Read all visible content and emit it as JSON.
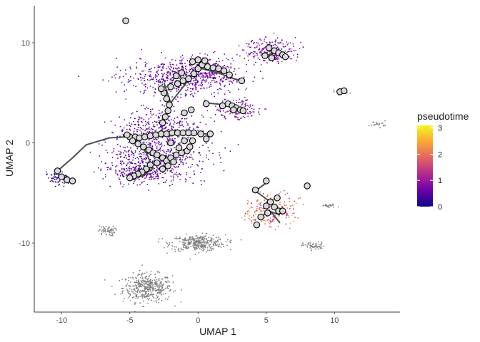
{
  "chart_data": {
    "type": "scatter",
    "title": "",
    "xlabel": "UMAP 1",
    "ylabel": "UMAP 2",
    "xlim": [
      -12,
      14.8
    ],
    "ylim": [
      -16.9,
      13.7
    ],
    "xticks": [
      -10,
      -5,
      0,
      5,
      10
    ],
    "yticks": [
      -10,
      0,
      10
    ],
    "grid": false,
    "legend": {
      "title": "pseudotime",
      "placement": "right",
      "range": [
        0,
        3.1
      ],
      "ticks": [
        0,
        1,
        2,
        3
      ],
      "colors": [
        "#0d0887",
        "#6a00a8",
        "#b12a90",
        "#e16462",
        "#fca636",
        "#f0f921"
      ]
    },
    "colors": {
      "unassigned": "#7f7f7f",
      "trajectory": "#4d4d4d"
    },
    "clusters": [
      {
        "name": "top-left",
        "cx": -1.6,
        "cy": 6.5,
        "sx": 1.9,
        "sy": 0.9,
        "n": 520,
        "t": [
          0.2,
          0.9
        ]
      },
      {
        "name": "upper-mid",
        "cx": 0.8,
        "cy": 7.2,
        "sx": 1.3,
        "sy": 0.7,
        "n": 260,
        "t": [
          0.3,
          1.0
        ]
      },
      {
        "name": "mid-right",
        "cx": 2.8,
        "cy": 3.4,
        "sx": 0.8,
        "sy": 0.5,
        "n": 140,
        "t": [
          0.4,
          1.2
        ]
      },
      {
        "name": "center-band",
        "cx": -2.8,
        "cy": 1.5,
        "sx": 1.6,
        "sy": 0.9,
        "n": 330,
        "t": [
          0.2,
          0.8
        ]
      },
      {
        "name": "center-low",
        "cx": -3.0,
        "cy": -1.5,
        "sx": 1.8,
        "sy": 1.1,
        "n": 520,
        "t": [
          0.1,
          0.8
        ]
      },
      {
        "name": "lower-left",
        "cx": -4.2,
        "cy": -3.0,
        "sx": 1.0,
        "sy": 0.5,
        "n": 220,
        "t": [
          0.2,
          0.9
        ]
      },
      {
        "name": "far-left",
        "cx": -10.2,
        "cy": -3.6,
        "sx": 0.4,
        "sy": 0.35,
        "n": 70,
        "t": [
          0.0,
          0.5
        ]
      },
      {
        "name": "top-right",
        "cx": 5.3,
        "cy": 9.2,
        "sx": 0.9,
        "sy": 0.6,
        "n": 240,
        "t": [
          0.3,
          1.2
        ]
      },
      {
        "name": "right-branch",
        "cx": 5.3,
        "cy": -6.8,
        "sx": 0.9,
        "sy": 0.8,
        "n": 230,
        "t": [
          1.0,
          2.7
        ]
      }
    ],
    "gray_clusters": [
      {
        "name": "ring-bottom",
        "cx": -3.7,
        "cy": -14.5,
        "sx": 0.9,
        "sy": 0.7,
        "n": 420
      },
      {
        "name": "blob-bottom",
        "cx": 0.0,
        "cy": -10.0,
        "sx": 1.0,
        "sy": 0.4,
        "n": 340
      },
      {
        "name": "blob-left",
        "cx": -6.7,
        "cy": -8.8,
        "sx": 0.3,
        "sy": 0.25,
        "n": 60
      },
      {
        "name": "blob-right",
        "cx": 8.5,
        "cy": -10.3,
        "sx": 0.4,
        "sy": 0.2,
        "n": 60
      },
      {
        "name": "blob-right2",
        "cx": 9.6,
        "cy": -6.3,
        "sx": 0.3,
        "sy": 0.1,
        "n": 24
      },
      {
        "name": "blob-far",
        "cx": 13.2,
        "cy": 1.9,
        "sx": 0.3,
        "sy": 0.15,
        "n": 22
      },
      {
        "name": "blob-mid",
        "cx": 10.5,
        "cy": 5.1,
        "sx": 0.3,
        "sy": 0.15,
        "n": 22
      }
    ],
    "trajectory": [
      [
        [
          -10.3,
          -2.8
        ],
        [
          -9.2,
          -1.5
        ],
        [
          -8.2,
          -0.2
        ],
        [
          -6.5,
          0.5
        ],
        [
          -5.3,
          0.6
        ]
      ],
      [
        [
          -5.3,
          0.6
        ],
        [
          -4.0,
          0.7
        ],
        [
          -2.5,
          0.9
        ],
        [
          -1.0,
          0.9
        ],
        [
          1.0,
          0.9
        ]
      ],
      [
        [
          -4.6,
          0.4
        ],
        [
          -3.8,
          -1.0
        ],
        [
          -3.3,
          -2.5
        ],
        [
          -4.0,
          -3.3
        ],
        [
          -5.2,
          -3.6
        ]
      ],
      [
        [
          -2.6,
          2.0
        ],
        [
          -2.0,
          4.0
        ],
        [
          -2.3,
          5.2
        ],
        [
          -2.5,
          6.0
        ]
      ],
      [
        [
          -2.0,
          4.0
        ],
        [
          0.0,
          7.5
        ],
        [
          1.5,
          7.0
        ],
        [
          2.4,
          6.5
        ],
        [
          3.2,
          6.2
        ]
      ],
      [
        [
          0.5,
          4.0
        ],
        [
          2.0,
          3.8
        ],
        [
          3.3,
          3.2
        ]
      ],
      [
        [
          4.8,
          8.5
        ],
        [
          5.7,
          9.2
        ],
        [
          6.3,
          8.9
        ]
      ],
      [
        [
          4.2,
          -4.8
        ],
        [
          5.2,
          -5.8
        ],
        [
          6.0,
          -6.7
        ]
      ],
      [
        [
          4.5,
          -7.5
        ],
        [
          5.2,
          -6.8
        ],
        [
          6.0,
          -7.2
        ]
      ],
      [
        [
          5.0,
          -4.0
        ],
        [
          4.2,
          -4.8
        ]
      ],
      [
        [
          5.3,
          -6.8
        ],
        [
          6.0,
          -8.0
        ]
      ]
    ],
    "nodes": [
      [
        -5.3,
        12.2
      ],
      [
        -10.3,
        -2.8
      ],
      [
        -10.0,
        -3.4
      ],
      [
        -9.6,
        -3.7
      ],
      [
        -9.2,
        -3.8
      ],
      [
        -5.0,
        0.6
      ],
      [
        -4.6,
        0.6
      ],
      [
        -4.3,
        0.5
      ],
      [
        -3.9,
        0.6
      ],
      [
        -3.5,
        0.7
      ],
      [
        -3.1,
        0.8
      ],
      [
        -2.7,
        0.9
      ],
      [
        -2.3,
        0.9
      ],
      [
        -1.9,
        1.0
      ],
      [
        -1.5,
        1.0
      ],
      [
        -1.1,
        1.0
      ],
      [
        -0.7,
        1.0
      ],
      [
        -0.3,
        1.0
      ],
      [
        0.2,
        0.9
      ],
      [
        0.6,
        0.4
      ],
      [
        0.9,
        0.9
      ],
      [
        -4.4,
        -0.1
      ],
      [
        -4.0,
        -0.4
      ],
      [
        -3.6,
        -0.7
      ],
      [
        -3.3,
        -1.0
      ],
      [
        -3.0,
        -1.2
      ],
      [
        -2.6,
        -1.5
      ],
      [
        -2.3,
        -1.8
      ],
      [
        -2.0,
        -1.5
      ],
      [
        -1.6,
        -1.2
      ],
      [
        -1.2,
        -1.0
      ],
      [
        -0.8,
        -0.8
      ],
      [
        -0.4,
        0.2
      ],
      [
        -1.0,
        0.2
      ],
      [
        -2.0,
        0.0
      ],
      [
        -3.5,
        -2.2
      ],
      [
        -3.8,
        -2.6
      ],
      [
        -4.1,
        -2.9
      ],
      [
        -4.4,
        -3.1
      ],
      [
        -4.7,
        -3.3
      ],
      [
        -5.0,
        -3.5
      ],
      [
        -3.0,
        -2.0
      ],
      [
        -2.6,
        -2.6
      ],
      [
        -2.2,
        -2.3
      ],
      [
        -1.8,
        -1.9
      ],
      [
        -2.6,
        2.0
      ],
      [
        -2.4,
        2.6
      ],
      [
        -2.2,
        3.2
      ],
      [
        -2.1,
        3.8
      ],
      [
        -2.3,
        4.4
      ],
      [
        -2.5,
        5.0
      ],
      [
        -2.7,
        5.4
      ],
      [
        -2.0,
        5.6
      ],
      [
        -1.5,
        5.9
      ],
      [
        -1.1,
        6.2
      ],
      [
        -0.7,
        6.4
      ],
      [
        -0.3,
        6.9
      ],
      [
        0.0,
        7.4
      ],
      [
        0.3,
        7.8
      ],
      [
        0.7,
        7.6
      ],
      [
        1.1,
        7.5
      ],
      [
        1.5,
        7.4
      ],
      [
        1.9,
        7.2
      ],
      [
        2.3,
        6.8
      ],
      [
        3.2,
        6.2
      ],
      [
        -0.4,
        8.1
      ],
      [
        0.0,
        8.3
      ],
      [
        0.5,
        8.2
      ],
      [
        -1.2,
        7.0
      ],
      [
        -1.6,
        6.7
      ],
      [
        0.6,
        3.9
      ],
      [
        1.8,
        3.7
      ],
      [
        2.2,
        3.9
      ],
      [
        2.5,
        3.7
      ],
      [
        2.8,
        3.5
      ],
      [
        3.1,
        3.3
      ],
      [
        3.3,
        3.2
      ],
      [
        2.6,
        3.3
      ],
      [
        -0.5,
        3.3
      ],
      [
        -1.0,
        3.0
      ],
      [
        5.2,
        9.5
      ],
      [
        5.6,
        9.2
      ],
      [
        5.9,
        9.0
      ],
      [
        6.2,
        8.8
      ],
      [
        6.4,
        8.6
      ],
      [
        4.9,
        8.7
      ],
      [
        5.4,
        8.5
      ],
      [
        10.4,
        5.1
      ],
      [
        10.7,
        5.2
      ],
      [
        5.0,
        -3.8
      ],
      [
        4.2,
        -4.7
      ],
      [
        5.3,
        -5.9
      ],
      [
        5.6,
        -6.4
      ],
      [
        5.9,
        -6.8
      ],
      [
        6.2,
        -6.8
      ],
      [
        4.6,
        -7.4
      ],
      [
        5.1,
        -7.0
      ],
      [
        5.0,
        -6.3
      ],
      [
        4.3,
        -8.2
      ],
      [
        5.8,
        -5.5
      ],
      [
        8.0,
        -4.3
      ],
      [
        -0.6,
        -0.4
      ],
      [
        -1.4,
        -0.5
      ],
      [
        -4.8,
        0.2
      ],
      [
        -5.2,
        0.8
      ]
    ]
  }
}
